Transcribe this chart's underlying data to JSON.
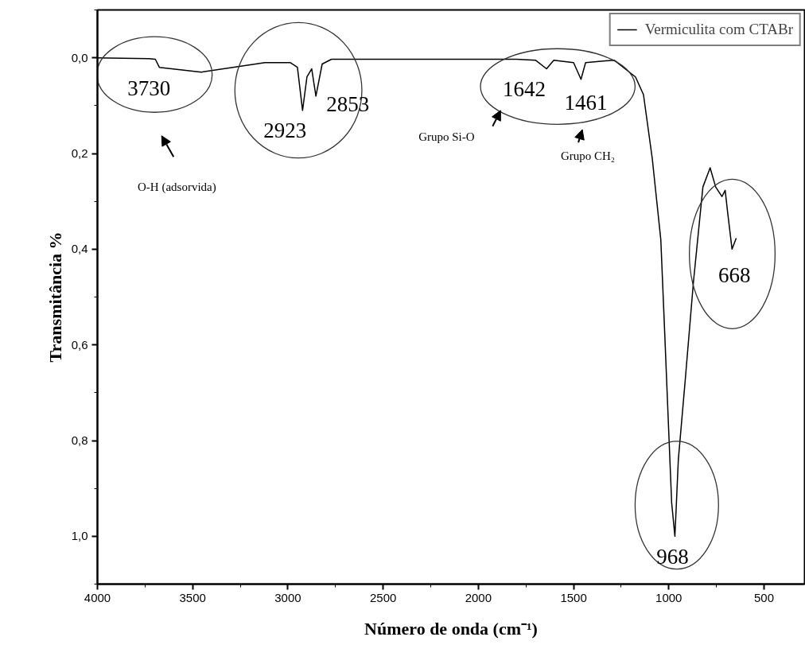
{
  "chart_data": {
    "type": "line",
    "xlabel": "Número de onda (cm⁻¹)",
    "ylabel": "Transmitância %",
    "x": [
      4000,
      3730,
      3696,
      3675,
      3454,
      3121,
      2988,
      2950,
      2923,
      2900,
      2875,
      2853,
      2820,
      2771,
      2500,
      2000,
      1800,
      1700,
      1642,
      1604,
      1500,
      1461,
      1437,
      1287,
      1175,
      1133,
      1087,
      1042,
      1021,
      1000,
      985,
      968,
      960,
      950,
      913,
      871,
      821,
      783,
      754,
      721,
      704,
      692,
      668,
      646
    ],
    "series": [
      {
        "name": "Vermiculita com CTABr",
        "color": "#000000",
        "values": [
          0.0,
          0.002,
          0.003,
          0.02,
          0.03,
          0.01,
          0.01,
          0.02,
          0.11,
          0.04,
          0.023,
          0.08,
          0.013,
          0.003,
          0.003,
          0.003,
          0.003,
          0.005,
          0.023,
          0.005,
          0.01,
          0.045,
          0.01,
          0.005,
          0.04,
          0.077,
          0.21,
          0.38,
          0.58,
          0.785,
          0.93,
          1.0,
          0.93,
          0.84,
          0.67,
          0.47,
          0.27,
          0.23,
          0.27,
          0.29,
          0.277,
          0.32,
          0.4,
          0.377
        ]
      }
    ],
    "xlim": [
      4000,
      287
    ],
    "ylim": [
      1.1,
      -0.1
    ],
    "xticks": [
      4000,
      3500,
      3000,
      2500,
      2000,
      1500,
      1000,
      500
    ],
    "yticks": [
      {
        "value": 0.0,
        "label": "0,0"
      },
      {
        "value": 0.2,
        "label": "0,2"
      },
      {
        "value": 0.4,
        "label": "0,4"
      },
      {
        "value": 0.6,
        "label": "0,6"
      },
      {
        "value": 0.8,
        "label": "0,8"
      },
      {
        "value": 1.0,
        "label": "1,0"
      }
    ],
    "grid": false,
    "legend": "top right",
    "marker": "none",
    "line_style": "solid",
    "annotations": [
      {
        "text": "3730",
        "x": 3730,
        "y": 0.002
      },
      {
        "text": "2923",
        "x": 2923,
        "y": 0.11
      },
      {
        "text": "2853",
        "x": 2853,
        "y": 0.08
      },
      {
        "text": "1642",
        "x": 1642,
        "y": 0.023
      },
      {
        "text": "1461",
        "x": 1461,
        "y": 0.045
      },
      {
        "text": "968",
        "x": 968,
        "y": 1.0
      },
      {
        "text": "668",
        "x": 668,
        "y": 0.4
      },
      "O-H (adsorvida)",
      "Grupo Si-O",
      "Grupo CH₂"
    ]
  }
}
